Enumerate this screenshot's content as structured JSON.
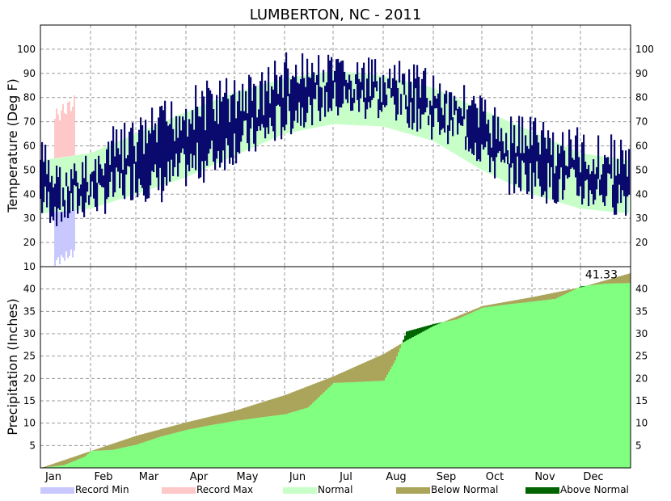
{
  "chart_data": {
    "type": "line",
    "title": "LUMBERTON, NC - 2011",
    "months": [
      "Jan",
      "Feb",
      "Mar",
      "Apr",
      "May",
      "Jun",
      "Jul",
      "Aug",
      "Sep",
      "Oct",
      "Nov",
      "Dec"
    ],
    "temperature": {
      "ylabel": "Temperature (Deg F)",
      "ylim": [
        10,
        110
      ],
      "yticks": [
        10,
        20,
        30,
        40,
        50,
        60,
        70,
        80,
        90,
        100
      ],
      "normal": {
        "day": [
          1,
          32,
          60,
          91,
          121,
          152,
          182,
          213,
          244,
          274,
          305,
          335,
          365
        ],
        "high": [
          54,
          57,
          65,
          74,
          82,
          88,
          91,
          89,
          84,
          75,
          66,
          57,
          54
        ],
        "low": [
          32,
          34,
          40,
          47,
          56,
          65,
          69,
          68,
          62,
          50,
          40,
          34,
          32
        ]
      },
      "record_min": {
        "day_range": [
          10,
          22
        ],
        "low": [
          12,
          16
        ]
      },
      "record_max": {
        "day_range": [
          10,
          22
        ],
        "high": [
          72,
          78
        ]
      },
      "observed": {
        "day": [
          1,
          15,
          32,
          45,
          60,
          75,
          91,
          105,
          121,
          135,
          152,
          165,
          182,
          196,
          213,
          227,
          244,
          258,
          274,
          288,
          305,
          319,
          335,
          350,
          365
        ],
        "high": [
          65,
          52,
          58,
          68,
          72,
          78,
          85,
          88,
          90,
          92,
          100,
          98,
          98,
          97,
          96,
          95,
          92,
          88,
          82,
          74,
          75,
          70,
          68,
          66,
          64
        ],
        "low": [
          28,
          25,
          30,
          32,
          38,
          35,
          42,
          45,
          52,
          55,
          62,
          68,
          70,
          70,
          70,
          68,
          62,
          60,
          50,
          40,
          38,
          35,
          33,
          32,
          30
        ]
      }
    },
    "precipitation": {
      "ylabel": "Precipitation (Inches)",
      "ylim": [
        0,
        45
      ],
      "yticks": [
        5,
        10,
        15,
        20,
        25,
        30,
        35,
        40
      ],
      "annotation": "41.33",
      "normal": {
        "day": [
          1,
          32,
          60,
          91,
          121,
          152,
          182,
          213,
          227,
          244,
          274,
          305,
          335,
          365
        ],
        "value": [
          0,
          3.8,
          7.2,
          10.2,
          12.8,
          16.3,
          20.5,
          25.5,
          28.5,
          31.8,
          36.2,
          38.2,
          40.4,
          43.5
        ]
      },
      "observed": {
        "day": [
          1,
          15,
          28,
          32,
          45,
          60,
          75,
          91,
          105,
          121,
          135,
          152,
          166,
          182,
          196,
          213,
          220,
          227,
          244,
          258,
          274,
          288,
          305,
          319,
          335,
          350,
          365
        ],
        "value": [
          0,
          0.6,
          2.5,
          3.8,
          4.0,
          5.2,
          7.0,
          8.5,
          9.5,
          10.5,
          11.2,
          12.0,
          13.5,
          19.0,
          19.2,
          19.5,
          24.0,
          30.5,
          32.2,
          33.2,
          35.8,
          36.5,
          37.2,
          37.8,
          40.6,
          41.2,
          41.33
        ]
      }
    },
    "legend": [
      {
        "label": "Record Min",
        "color": "#c8c8ff"
      },
      {
        "label": "Record Max",
        "color": "#ffc8c8"
      },
      {
        "label": "Normal",
        "color": "#c8ffc8"
      },
      {
        "label": "Below Normal",
        "color": "#aaa55a"
      },
      {
        "label": "Above Normal",
        "color": "#006400"
      }
    ],
    "colors": {
      "observed_temp": "#0a0a6e",
      "observed_precip": "#80ff80",
      "below_normal": "#aaa55a",
      "above_normal": "#006400",
      "normal_band": "#c8ffc8",
      "grid": "#999999"
    }
  }
}
